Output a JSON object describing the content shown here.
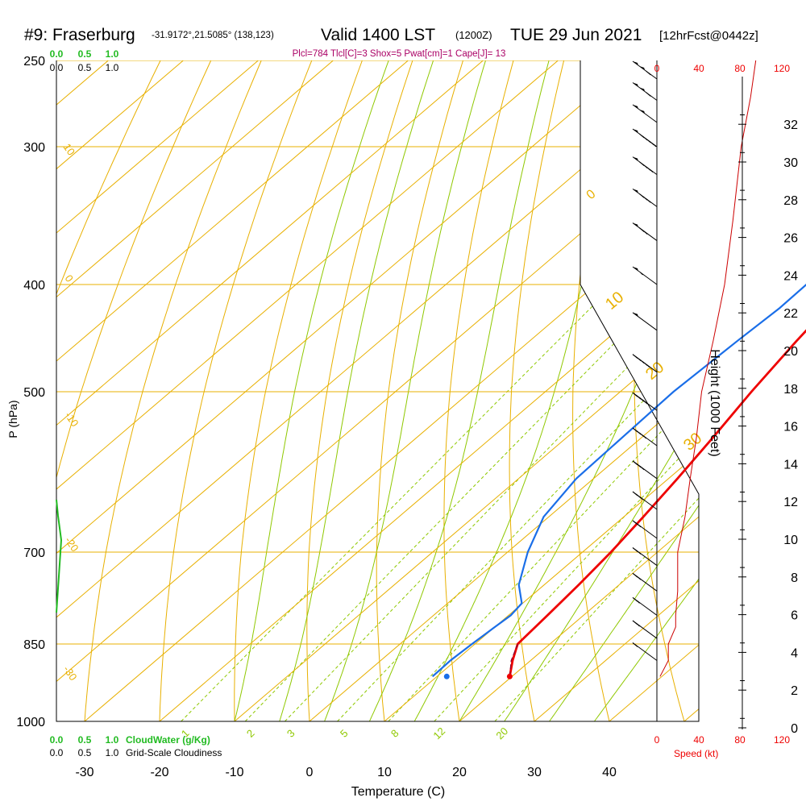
{
  "header": {
    "station": "#9: Fraserburg",
    "coords": "-31.9172°,21.5085° (138,123)",
    "valid": "Valid 1400 LST",
    "utc": "(1200Z)",
    "date": "TUE 29 Jun 2021",
    "forecast": "[12hrFcst@0442z]",
    "indices": "Plcl=784 Tlcl[C]=3 Shox=5 Pwat[cm]=1 Cape[J]= 13"
  },
  "colors": {
    "temperature": "#ee0000",
    "dewpoint": "#1a6ee8",
    "isobar": "#e8b000",
    "dry_adiabat": "#e8b000",
    "moist_adiabat": "#8fc800",
    "mixing_ratio": "#8fc800",
    "cloud_water": "#22bb22",
    "wind_axis": "#ee0000",
    "parcel": "#880033",
    "indices": "#aa0066"
  },
  "chart_data": {
    "type": "line",
    "chart_kind": "skew-T log-P sounding",
    "xlabel": "Temperature (C)",
    "ylabel": "P (hPa)",
    "x_ticks": [
      "-30",
      "-20",
      "-10",
      "0",
      "10",
      "20",
      "30",
      "40"
    ],
    "y_ticks": [
      "250",
      "300",
      "400",
      "500",
      "700",
      "850",
      "1000"
    ],
    "height_axis": {
      "label": "Height (1000 Feet)",
      "ticks": [
        "0",
        "2",
        "4",
        "6",
        "8",
        "10",
        "12",
        "14",
        "16",
        "18",
        "20",
        "22",
        "24",
        "26",
        "28",
        "30",
        "32"
      ]
    },
    "wind_speed_axis": {
      "label": "Speed (kt)",
      "ticks": [
        "0",
        "40",
        "80",
        "120"
      ]
    },
    "cloud_axis": {
      "cloudwater_label": "CloudWater (g/Kg)",
      "cloudiness_label": "Grid-Scale Cloudiness",
      "top_green_ticks": [
        "0.0",
        "0.5",
        "1.0"
      ],
      "top_black_ticks": [
        "0.0",
        "0.5",
        "1.0"
      ],
      "bottom_green_ticks": [
        "0.0",
        "0.5",
        "1.0"
      ],
      "bottom_black_ticks": [
        "0.0",
        "0.5",
        "1.0"
      ]
    },
    "dry_adiabat_labels": [
      "10",
      "0",
      "-10",
      "-20",
      "-30"
    ],
    "theta_e_labels": [
      "0",
      "10",
      "20",
      "30"
    ],
    "mixing_ratio_labels": [
      "1",
      "2",
      "3",
      "5",
      "8",
      "12",
      "20"
    ],
    "series": [
      {
        "name": "temperature",
        "points": [
          {
            "p": 910,
            "t": 19.7
          },
          {
            "p": 880,
            "t": 17.6
          },
          {
            "p": 850,
            "t": 15.7
          },
          {
            "p": 800,
            "t": 15.2
          },
          {
            "p": 750,
            "t": 14.6
          },
          {
            "p": 700,
            "t": 13.8
          },
          {
            "p": 650,
            "t": 12.6
          },
          {
            "p": 600,
            "t": 11.2
          },
          {
            "p": 550,
            "t": 9.5
          },
          {
            "p": 500,
            "t": 7.5
          },
          {
            "p": 450,
            "t": 5.6
          },
          {
            "p": 400,
            "t": 3.8
          },
          {
            "p": 375,
            "t": 2.8
          },
          {
            "p": 350,
            "t": 2.0
          },
          {
            "p": 325,
            "t": 1.6
          },
          {
            "p": 300,
            "t": 1.3
          },
          {
            "p": 280,
            "t": 1.1
          },
          {
            "p": 262,
            "t": 0.9
          }
        ]
      },
      {
        "name": "dewpoint",
        "points": [
          {
            "p": 910,
            "t": 9.4
          },
          {
            "p": 880,
            "t": 9.3
          },
          {
            "p": 850,
            "t": 9.6
          },
          {
            "p": 820,
            "t": 10.0
          },
          {
            "p": 800,
            "t": 10.3
          },
          {
            "p": 780,
            "t": 9.9
          },
          {
            "p": 750,
            "t": 6.6
          },
          {
            "p": 700,
            "t": 2.7
          },
          {
            "p": 650,
            "t": -0.7
          },
          {
            "p": 600,
            "t": -2.3
          },
          {
            "p": 550,
            "t": -2.6
          },
          {
            "p": 500,
            "t": -2.9
          },
          {
            "p": 450,
            "t": -2.3
          },
          {
            "p": 420,
            "t": -1.8
          },
          {
            "p": 400,
            "t": -1.9
          },
          {
            "p": 380,
            "t": -2.8
          },
          {
            "p": 360,
            "t": -4.3
          },
          {
            "p": 340,
            "t": -6.5
          },
          {
            "p": 320,
            "t": -10.6
          },
          {
            "p": 300,
            "t": -14.4
          },
          {
            "p": 285,
            "t": -13.6
          },
          {
            "p": 274,
            "t": -11.2
          },
          {
            "p": 262,
            "t": -8.3
          }
        ]
      },
      {
        "name": "parcel",
        "points": [
          {
            "p": 910,
            "t": 19.7
          },
          {
            "p": 880,
            "t": 17.4
          },
          {
            "p": 850,
            "t": 15.7
          }
        ]
      }
    ],
    "surface_dewpoint": {
      "p": 910,
      "t": 11.3
    },
    "wind_speed_profile": [
      {
        "p": 910,
        "kt": 3
      },
      {
        "p": 880,
        "kt": 11
      },
      {
        "p": 850,
        "kt": 11
      },
      {
        "p": 820,
        "kt": 18
      },
      {
        "p": 800,
        "kt": 18
      },
      {
        "p": 760,
        "kt": 20
      },
      {
        "p": 700,
        "kt": 20
      },
      {
        "p": 650,
        "kt": 27
      },
      {
        "p": 600,
        "kt": 32
      },
      {
        "p": 550,
        "kt": 38
      },
      {
        "p": 500,
        "kt": 43
      },
      {
        "p": 450,
        "kt": 54
      },
      {
        "p": 400,
        "kt": 65
      },
      {
        "p": 350,
        "kt": 73
      },
      {
        "p": 300,
        "kt": 81
      },
      {
        "p": 270,
        "kt": 90
      },
      {
        "p": 250,
        "kt": 95
      }
    ],
    "wind_barbs": [
      {
        "p": 260,
        "kt": 110
      },
      {
        "p": 272,
        "kt": 110
      },
      {
        "p": 285,
        "kt": 100
      },
      {
        "p": 300,
        "kt": 95
      },
      {
        "p": 318,
        "kt": 85
      },
      {
        "p": 340,
        "kt": 80
      },
      {
        "p": 365,
        "kt": 70
      },
      {
        "p": 400,
        "kt": 55
      },
      {
        "p": 440,
        "kt": 50
      },
      {
        "p": 480,
        "kt": 45
      },
      {
        "p": 520,
        "kt": 40
      },
      {
        "p": 560,
        "kt": 35
      },
      {
        "p": 600,
        "kt": 30
      },
      {
        "p": 640,
        "kt": 25
      },
      {
        "p": 680,
        "kt": 20
      },
      {
        "p": 720,
        "kt": 20
      },
      {
        "p": 760,
        "kt": 20
      },
      {
        "p": 800,
        "kt": 15
      },
      {
        "p": 840,
        "kt": 15
      },
      {
        "p": 880,
        "kt": 10
      }
    ]
  }
}
